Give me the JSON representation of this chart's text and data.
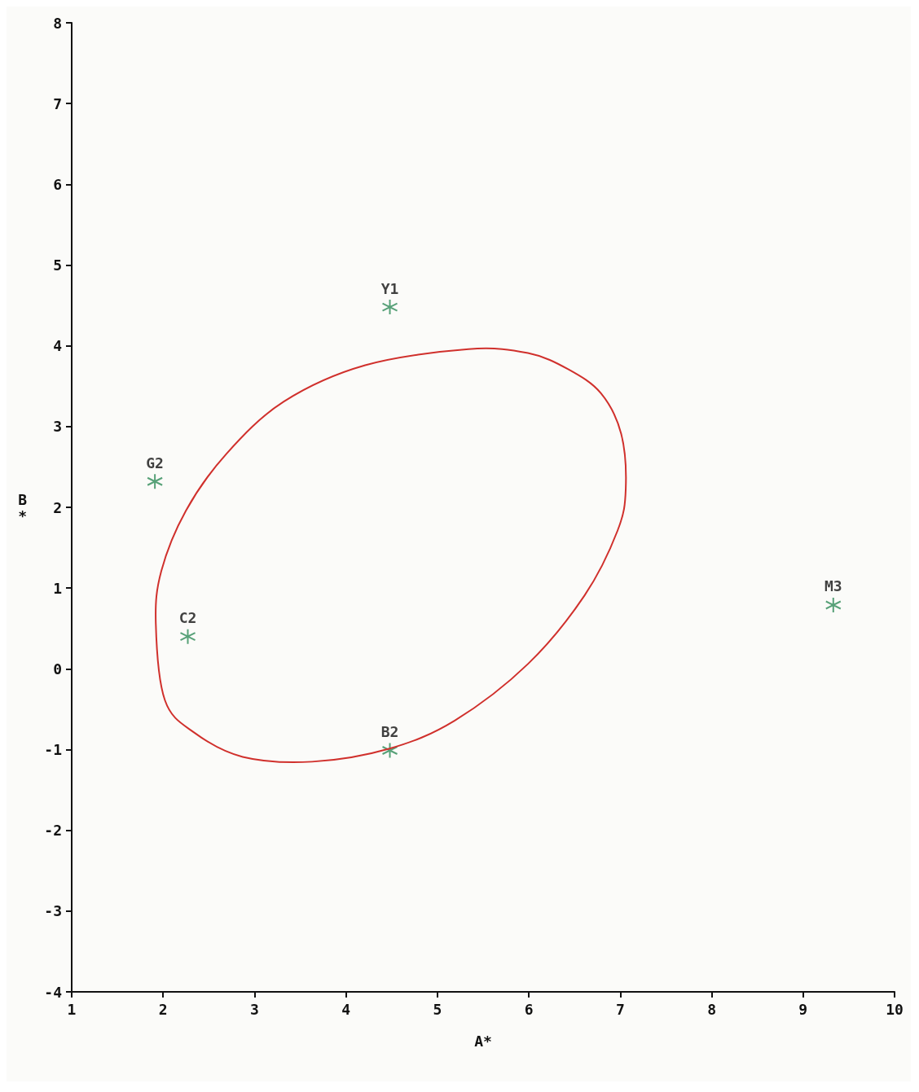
{
  "chart_data": {
    "type": "scatter",
    "xlabel": "A*",
    "ylabel": "B*",
    "xlim": [
      1,
      10
    ],
    "xticks": [
      1,
      2,
      3,
      4,
      5,
      6,
      7,
      8,
      9,
      10
    ],
    "ylim": [
      -4,
      8
    ],
    "yticks": [
      -4,
      -3,
      -2,
      -1,
      0,
      1,
      2,
      3,
      4,
      5,
      6,
      7,
      8
    ],
    "grid": false,
    "marker": "cross",
    "series": [
      {
        "color": "#2e8b57",
        "x": [
          4.48,
          1.91,
          2.27,
          4.48,
          9.33
        ],
        "values": [
          4.48,
          2.32,
          0.4,
          -1.01,
          0.79
        ]
      }
    ],
    "annotations": [
      {
        "text": "Y1",
        "x": 4.48,
        "y": 4.48
      },
      {
        "text": "G2",
        "x": 1.91,
        "y": 2.32
      },
      {
        "text": "C2",
        "x": 2.27,
        "y": 0.4
      },
      {
        "text": "B2",
        "x": 4.48,
        "y": -1.01
      },
      {
        "text": "M3",
        "x": 9.33,
        "y": 0.79
      }
    ]
  }
}
